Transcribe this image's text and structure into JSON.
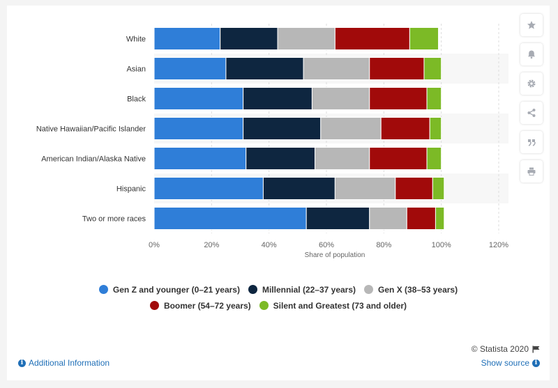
{
  "chart_data": {
    "type": "bar",
    "orientation": "horizontal",
    "stacked": true,
    "categories": [
      "White",
      "Asian",
      "Black",
      "Native Hawaiian/Pacific Islander",
      "American Indian/Alaska Native",
      "Hispanic",
      "Two or more races"
    ],
    "series": [
      {
        "name": "Gen Z and younger (0–21 years)",
        "color": "#2f7ed8",
        "values": [
          23,
          25,
          31,
          31,
          32,
          38,
          53
        ]
      },
      {
        "name": "Millennial (22–37 years)",
        "color": "#0e2640",
        "values": [
          20,
          27,
          24,
          27,
          24,
          25,
          22
        ]
      },
      {
        "name": "Gen X (38–53 years)",
        "color": "#b7b7b7",
        "values": [
          20,
          23,
          20,
          21,
          19,
          21,
          13
        ]
      },
      {
        "name": "Boomer (54–72 years)",
        "color": "#a10a0a",
        "values": [
          26,
          19,
          20,
          17,
          20,
          13,
          10
        ]
      },
      {
        "name": "Silent and Greatest (73 and older)",
        "color": "#7cba26",
        "values": [
          10,
          6,
          5,
          4,
          5,
          4,
          3
        ]
      }
    ],
    "xlabel": "Share of population",
    "ylabel": "",
    "xlim": [
      0,
      120
    ],
    "xticks": [
      "0%",
      "20%",
      "40%",
      "60%",
      "80%",
      "100%",
      "120%"
    ],
    "grid": "vertical dashed",
    "legend_position": "bottom"
  },
  "footer": {
    "credit": "© Statista 2020",
    "additional_info": "Additional Information",
    "show_source": "Show source"
  },
  "toolbar": {
    "icons": [
      "star-icon",
      "bell-icon",
      "gear-icon",
      "share-icon",
      "quote-icon",
      "print-icon"
    ]
  }
}
